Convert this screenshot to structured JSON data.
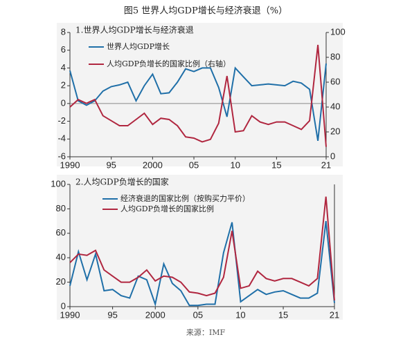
{
  "title": "图5 世界人均GDP增长与经济衰退（%）",
  "source": "来源：IMF",
  "chart_data": [
    {
      "type": "line",
      "title": "1.世界人均GDP增长与经济衰退",
      "x": [
        1990,
        1991,
        1992,
        1993,
        1994,
        1995,
        1996,
        1997,
        1998,
        1999,
        2000,
        2001,
        2002,
        2003,
        2004,
        2005,
        2006,
        2007,
        2008,
        2009,
        2010,
        2011,
        2012,
        2013,
        2014,
        2015,
        2016,
        2017,
        2018,
        2019,
        2020,
        2021
      ],
      "xlim": [
        1990,
        2021
      ],
      "xticks": [
        1990,
        {
          "value": 1995,
          "label": "95"
        },
        2000,
        {
          "value": 2005,
          "label": "05"
        },
        {
          "value": 2010,
          "label": "10"
        },
        {
          "value": 2015,
          "label": "15"
        },
        {
          "value": 2021,
          "label": "21"
        }
      ],
      "ylim": [
        -6,
        8
      ],
      "yticks": [
        -6,
        -4,
        -2,
        0,
        2,
        4,
        6,
        8
      ],
      "y2lim": [
        0,
        100
      ],
      "y2ticks": [
        0,
        20,
        40,
        60,
        80,
        100
      ],
      "series": [
        {
          "name": "世界人均GDP增长",
          "color": "#1f6fa8",
          "values": [
            3.7,
            0.3,
            -0.2,
            0.3,
            1.4,
            1.9,
            2.1,
            2.4,
            0.3,
            2.0,
            3.3,
            1.1,
            1.2,
            2.4,
            3.9,
            3.6,
            4.0,
            4.0,
            1.8,
            -1.5,
            4.0,
            3.0,
            2.0,
            2.1,
            2.2,
            2.1,
            2.0,
            2.5,
            2.3,
            1.6,
            -4.2,
            4.5
          ]
        },
        {
          "name": "人均GDP负增长的国家比例（右轴）",
          "color": "#b0263f",
          "axis": "y2",
          "values": [
            40,
            46,
            43,
            46,
            33,
            29,
            25,
            25,
            30,
            35,
            26,
            31,
            30,
            25,
            16,
            15,
            12,
            14,
            27,
            65,
            20,
            21,
            33,
            28,
            26,
            28,
            28,
            25,
            22,
            29,
            90,
            8
          ]
        }
      ]
    },
    {
      "type": "line",
      "title": "2.人均GDP负增长的国家",
      "x": [
        1990,
        1991,
        1992,
        1993,
        1994,
        1995,
        1996,
        1997,
        1998,
        1999,
        2000,
        2001,
        2002,
        2003,
        2004,
        2005,
        2006,
        2007,
        2008,
        2009,
        2010,
        2011,
        2012,
        2013,
        2014,
        2015,
        2016,
        2017,
        2018,
        2019,
        2020,
        2021
      ],
      "xlim": [
        1990,
        2021
      ],
      "xticks": [
        1990,
        {
          "value": 1995,
          "label": "95"
        },
        2000,
        {
          "value": 2005,
          "label": "05"
        },
        {
          "value": 2010,
          "label": "10"
        },
        {
          "value": 2015,
          "label": "15"
        },
        {
          "value": 2021,
          "label": "21"
        }
      ],
      "ylim": [
        0,
        100
      ],
      "yticks": [
        0,
        20,
        40,
        60,
        80,
        100
      ],
      "series": [
        {
          "name": "经济衰退的国家比例（按购买力平价）",
          "color": "#1f6fa8",
          "values": [
            17,
            45,
            22,
            43,
            13,
            14,
            9,
            7,
            25,
            22,
            2,
            35,
            19,
            13,
            1,
            1,
            2,
            2,
            44,
            69,
            4,
            9,
            14,
            10,
            12,
            13,
            10,
            7,
            7,
            11,
            70,
            3
          ]
        },
        {
          "name": "人均GDP负增长的国家比例",
          "color": "#b0263f",
          "values": [
            36,
            43,
            42,
            46,
            30,
            25,
            20,
            20,
            24,
            30,
            21,
            25,
            24,
            20,
            12,
            11,
            9,
            11,
            24,
            62,
            15,
            17,
            29,
            23,
            21,
            23,
            23,
            20,
            17,
            23,
            90,
            5
          ]
        }
      ]
    }
  ]
}
